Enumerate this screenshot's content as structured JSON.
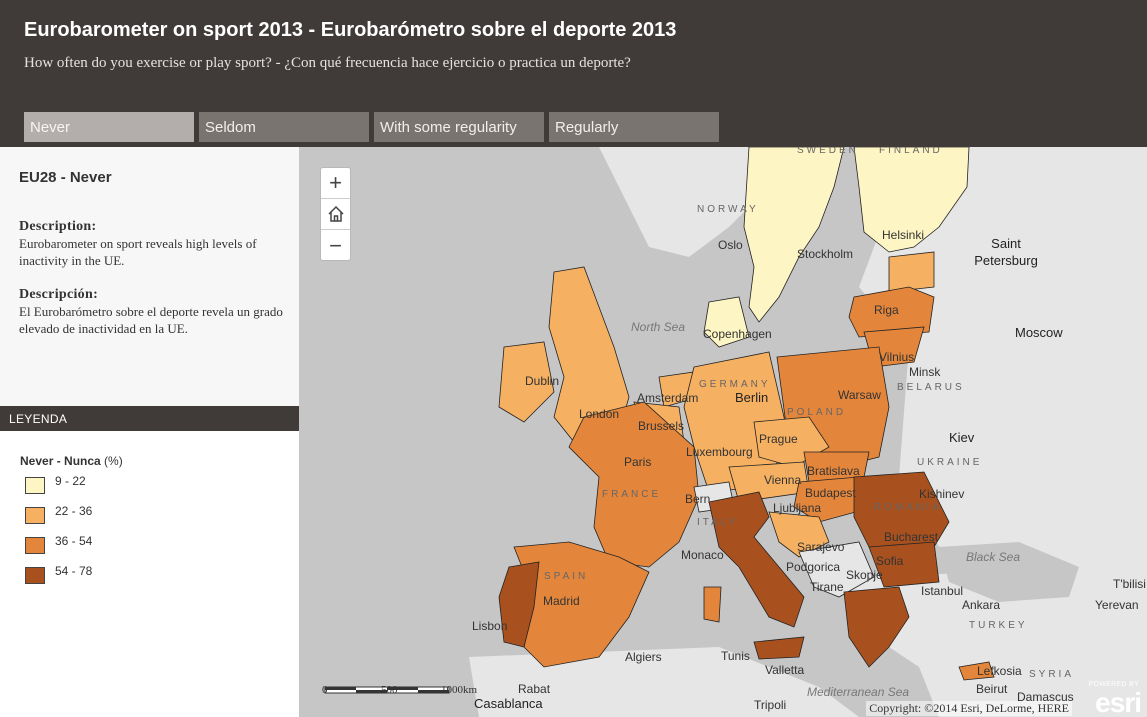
{
  "header": {
    "title": "Eurobarometer on sport 2013 - Eurobarómetro sobre el deporte 2013",
    "subtitle": "How often do you exercise or play sport? - ¿Con qué frecuencia hace ejercicio o practica un deporte?",
    "tabs": [
      {
        "label": "Never",
        "active": true
      },
      {
        "label": "Seldom",
        "active": false
      },
      {
        "label": "With some regularity",
        "active": false
      },
      {
        "label": "Regularly",
        "active": false
      }
    ]
  },
  "sidebar": {
    "title": "EU28 - Never",
    "description_label_en": "Description:",
    "description_en": "Eurobarometer on sport reveals high levels of inactivity in the UE.",
    "description_label_es": "Descripción:",
    "description_es": "El Eurobarómetro sobre el deporte revela un grado elevado de inactividad en la UE.",
    "legend_header": "LEYENDA",
    "legend": {
      "title": "Never - Nunca",
      "unit": "(%)",
      "classes": [
        {
          "range": "9 - 22",
          "color": "#fdf5c4"
        },
        {
          "range": "22 - 36",
          "color": "#f5b062"
        },
        {
          "range": "36 - 54",
          "color": "#e3863b"
        },
        {
          "range": "54 - 78",
          "color": "#a8511f"
        }
      ]
    }
  },
  "map": {
    "zoom_in": "+",
    "zoom_out": "−",
    "home_icon": "home-icon",
    "scale_labels": [
      "0",
      "500",
      "1000km"
    ],
    "copyright": "Copyright: ©2014 Esri, DeLorme, HERE",
    "logo_powered": "POWERED BY",
    "logo_name": "esri",
    "labels": {
      "cities": [
        "Oslo",
        "Stockholm",
        "Helsinki",
        "Saint Petersburg",
        "Moscow",
        "Riga",
        "Vilnius",
        "Minsk",
        "Copenhagen",
        "Dublin",
        "London",
        "Amsterdam",
        "Brussels",
        "Berlin",
        "Warsaw",
        "Kiev",
        "Prague",
        "Luxembourg",
        "Paris",
        "Vienna",
        "Bratislava",
        "Budapest",
        "Bern",
        "Ljubljana",
        "Kishinev",
        "Monaco",
        "Sarajevo",
        "Bucharest",
        "Podgorica",
        "Sofia",
        "Skopje",
        "Tirane",
        "Istanbul",
        "Ankara",
        "Yerevan",
        "T'bilisi",
        "Madrid",
        "Lisbon",
        "Algiers",
        "Tunis",
        "Valletta",
        "Rabat",
        "Casablanca",
        "Tripoli",
        "Lefkosia",
        "Beirut",
        "Damascus"
      ],
      "countries": [
        "SWEDEN",
        "FINLAND",
        "NORWAY",
        "BELARUS",
        "UKRAINE",
        "POLAND",
        "GERMANY",
        "FRANCE",
        "ITALY",
        "SPAIN",
        "ROMANIA",
        "TURKEY",
        "SYRIA"
      ],
      "seas": [
        "North Sea",
        "Black Sea",
        "Mediterranean Sea"
      ]
    }
  }
}
